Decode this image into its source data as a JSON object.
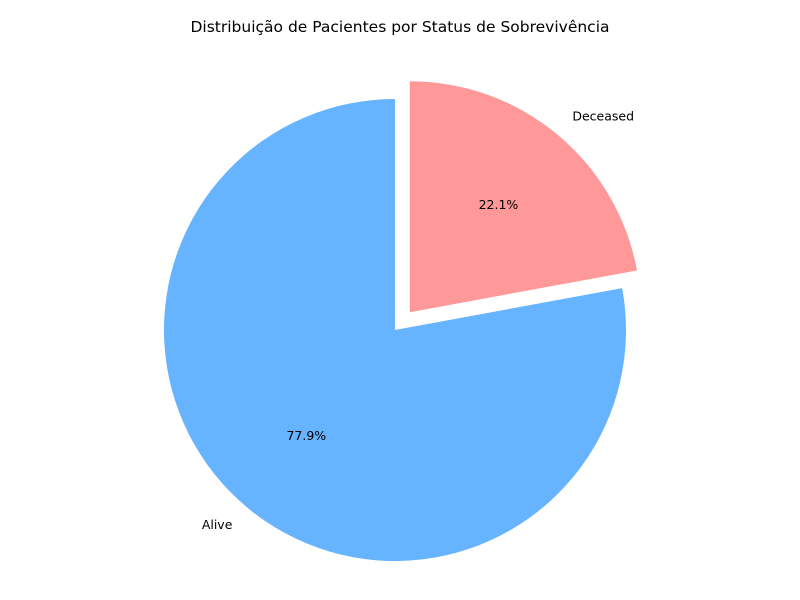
{
  "chart_data": {
    "type": "pie",
    "title": "Distribuição de Pacientes por Status de Sobrevivência",
    "slices": [
      {
        "label": "Deceased",
        "value": 22.1,
        "pct_label": "22.1%",
        "color": "#ff9999",
        "exploded": true
      },
      {
        "label": "Alive",
        "value": 77.9,
        "pct_label": "77.9%",
        "color": "#66b3ff",
        "exploded": false
      }
    ],
    "legend": "none",
    "start_angle_deg": 90,
    "direction": "clockwise"
  }
}
